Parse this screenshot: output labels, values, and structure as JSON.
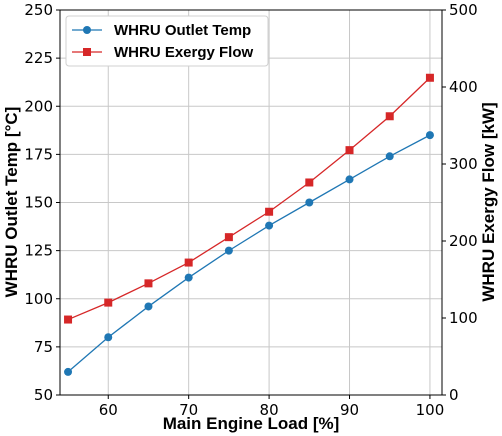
{
  "chart_data": {
    "type": "line",
    "xlabel": "Main Engine Load [%]",
    "ylabel_left": "WHRU Outlet Temp [°C]",
    "ylabel_right": "WHRU Exergy Flow [kW]",
    "xlim": [
      54,
      101.5
    ],
    "ylim_left": [
      50,
      250
    ],
    "ylim_right": [
      0,
      500
    ],
    "x_ticks": [
      60,
      70,
      80,
      90,
      100
    ],
    "y_left_ticks": [
      50,
      75,
      100,
      125,
      150,
      175,
      200,
      225,
      250
    ],
    "y_right_ticks": [
      0,
      100,
      200,
      300,
      400,
      500
    ],
    "grid": true,
    "legend_position": "top-left",
    "x": [
      55,
      60,
      65,
      70,
      75,
      80,
      85,
      90,
      95,
      100
    ],
    "series": [
      {
        "name": "WHRU Outlet Temp",
        "axis": "left",
        "color": "#1f77b4",
        "marker": "circle",
        "values": [
          62,
          80,
          96,
          111,
          125,
          138,
          150,
          162,
          174,
          185
        ]
      },
      {
        "name": "WHRU Exergy Flow",
        "axis": "right",
        "color": "#d62728",
        "marker": "square",
        "values": [
          98,
          120,
          145,
          172,
          205,
          238,
          276,
          318,
          362,
          412
        ]
      }
    ]
  }
}
